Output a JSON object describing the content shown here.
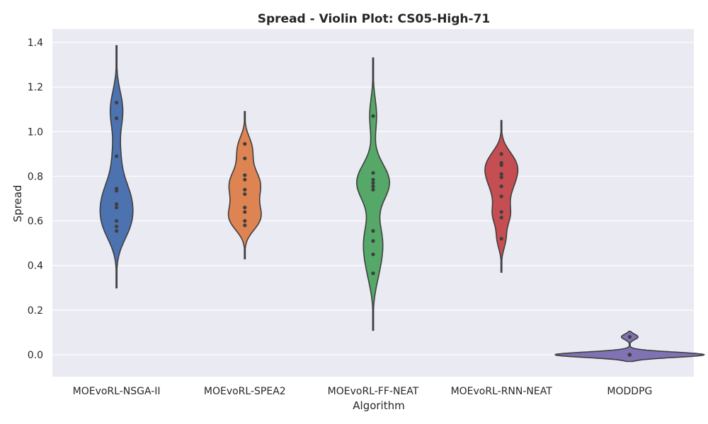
{
  "chart_data": {
    "type": "violin",
    "title": "Spread - Violin Plot: CS05-High-71",
    "xlabel": "Algorithm",
    "ylabel": "Spread",
    "ylim": [
      -0.1,
      1.45
    ],
    "yticks": [
      "0.0",
      "0.2",
      "0.4",
      "0.6",
      "0.8",
      "1.0",
      "1.2",
      "1.4"
    ],
    "grid": true,
    "categories": [
      "MOEvoRL-NSGA-II",
      "MOEvoRL-SPEA2",
      "MOEvoRL-FF-NEAT",
      "MOEvoRL-RNN-NEAT",
      "MODDPG"
    ],
    "series": [
      {
        "category": "MOEvoRL-NSGA-II",
        "color": "#4c72b0",
        "points": [
          1.13,
          1.06,
          0.89,
          0.745,
          0.735,
          0.675,
          0.66,
          0.6,
          0.575,
          0.555
        ],
        "range": [
          0.3,
          1.385
        ]
      },
      {
        "category": "MOEvoRL-SPEA2",
        "color": "#dd8452",
        "points": [
          0.945,
          0.88,
          0.805,
          0.785,
          0.74,
          0.72,
          0.66,
          0.64,
          0.6,
          0.58
        ],
        "range": [
          0.43,
          1.09
        ]
      },
      {
        "category": "MOEvoRL-FF-NEAT",
        "color": "#55a868",
        "points": [
          1.07,
          0.815,
          0.785,
          0.77,
          0.755,
          0.74,
          0.555,
          0.51,
          0.45,
          0.365
        ],
        "range": [
          0.11,
          1.33
        ]
      },
      {
        "category": "MOEvoRL-RNN-NEAT",
        "color": "#c44e52",
        "points": [
          0.9,
          0.86,
          0.85,
          0.81,
          0.795,
          0.755,
          0.71,
          0.64,
          0.615,
          0.52
        ],
        "range": [
          0.37,
          1.05
        ]
      },
      {
        "category": "MODDPG",
        "color": "#8172b3",
        "points": [
          0.08,
          0.0,
          0.0,
          0.0,
          0.0,
          0.0,
          0.0,
          0.0,
          0.0,
          0.0
        ],
        "range": [
          -0.03,
          0.105
        ]
      }
    ]
  }
}
